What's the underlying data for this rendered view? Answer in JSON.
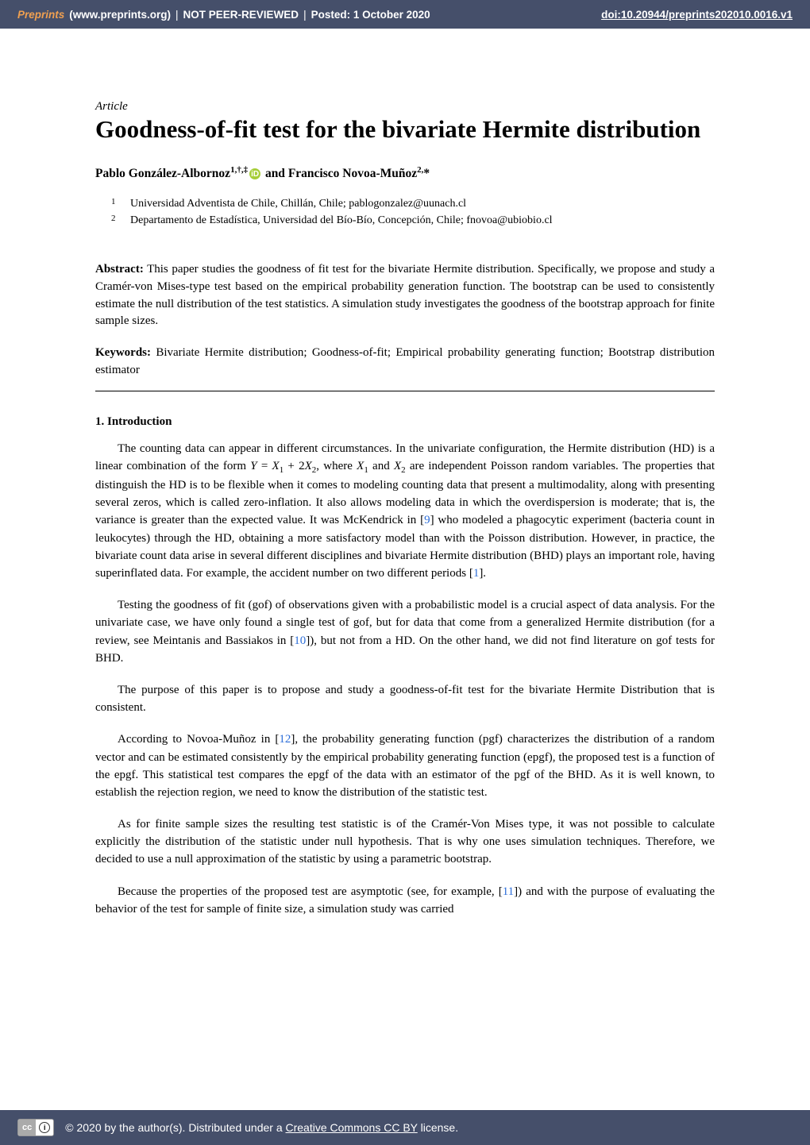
{
  "header": {
    "preprints_label": "Preprints",
    "site": "(www.preprints.org)",
    "sep1": "|",
    "npr": "NOT PEER-REVIEWED",
    "sep2": "|",
    "posted": "Posted: 1 October 2020",
    "doi_text": "doi:10.20944/preprints202010.0016.v1"
  },
  "article_label": "Article",
  "title": "Goodness-of-fit test for the bivariate Hermite distribution",
  "authors": {
    "a1_name": "Pablo González-Albornoz",
    "a1_sup": "1,†,‡",
    "and": " and ",
    "a2_name": "Francisco Novoa-Muñoz",
    "a2_sup": "2,",
    "a2_corr": "*"
  },
  "affiliations": {
    "n1": "1",
    "t1": "Universidad Adventista de Chile, Chillán, Chile; pablogonzalez@uunach.cl",
    "n2": "2",
    "t2": "Departamento de Estadística, Universidad del Bío-Bío, Concepción, Chile; fnovoa@ubiobio.cl"
  },
  "abstract_label": "Abstract:",
  "abstract_text": " This paper studies the goodness of fit test for the bivariate Hermite distribution. Specifically, we propose and study a Cramér-von Mises-type test based on the empirical probability generation function. The bootstrap can be used to consistently estimate the null distribution of the test statistics. A simulation study investigates the goodness of the bootstrap approach for finite sample sizes.",
  "keywords_label": "Keywords:",
  "keywords_text": " Bivariate Hermite distribution; Goodness-of-fit; Empirical probability generating function; Bootstrap distribution estimator",
  "section1": "1. Introduction",
  "p1_a": "The counting data can appear in different circumstances. In the univariate configuration, the Hermite distribution (HD) is a linear combination of the form ",
  "p1_eq_y": "Y",
  "p1_eq_eq": " = ",
  "p1_eq_x1": "X",
  "p1_eq_plus": " + 2",
  "p1_eq_x2": "X",
  "p1_b": ", where ",
  "p1_eq_x1b": "X",
  "p1_and": " and ",
  "p1_eq_x2b": "X",
  "p1_c": " are independent Poisson random variables. The properties that distinguish the HD is to be flexible when it comes to modeling counting data that present a multimodality, along with presenting several zeros, which is called zero-inflation. It also allows modeling data in which the overdispersion is moderate; that is, the variance is greater than the expected value. It was McKendrick in [",
  "ref9": "9",
  "p1_d": "] who modeled a phagocytic experiment (bacteria count in leukocytes) through the HD, obtaining a more satisfactory model than with the Poisson distribution. However, in practice, the bivariate count data arise in several different disciplines and bivariate Hermite distribution (BHD) plays an important role, having superinflated data. For example, the accident number on two different periods [",
  "ref1": "1",
  "p1_e": "].",
  "p2_a": "Testing the goodness of fit (gof) of observations given with a probabilistic model is a crucial aspect of data analysis. For the univariate case, we have only found a single test of gof, but for data that come from a generalized Hermite distribution (for a review, see Meintanis and Bassiakos in [",
  "ref10": "10",
  "p2_b": "]), but not from a HD. On the other hand, we did not find literature on gof tests for BHD.",
  "p3": "The purpose of this paper is to propose and study a goodness-of-fit test for the bivariate Hermite Distribution that is consistent.",
  "p4_a": "According to Novoa-Muñoz in [",
  "ref12": "12",
  "p4_b": "], the probability generating function (pgf) characterizes the distribution of a random vector and can be estimated consistently by the empirical probability generating function (epgf), the proposed test is a function of the epgf. This statistical test compares the epgf of the data with an estimator of the pgf of the BHD. As it is well known, to establish the rejection region, we need to know the distribution of the statistic test.",
  "p5": "As for finite sample sizes the resulting test statistic is of the Cramér-Von Mises type, it was not possible to calculate explicitly the distribution of the statistic under null hypothesis. That is why one uses simulation techniques. Therefore, we decided to use a null approximation of the statistic by using a parametric bootstrap.",
  "p6_a": "Because the properties of the proposed test are asymptotic (see, for example, [",
  "ref11": "11",
  "p6_b": "]) and with the purpose of evaluating the behavior of the test for sample of finite size, a simulation study was carried",
  "footer": {
    "copyright_a": "© 2020 by the author(s). Distributed under a ",
    "cc_link": "Creative Commons CC BY",
    "copyright_b": " license."
  }
}
